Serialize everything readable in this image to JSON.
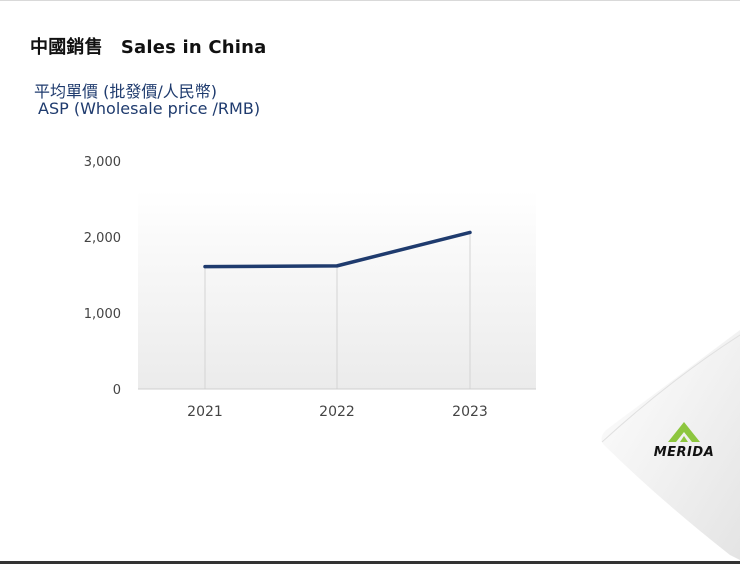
{
  "title": {
    "zh": "中國銷售",
    "en": "Sales in China"
  },
  "subtitle": {
    "zh": "平均單價 (批發價/人民幣)",
    "en": "ASP (Wholesale price /RMB)"
  },
  "chart_data": {
    "type": "line",
    "categories": [
      "2021",
      "2022",
      "2023"
    ],
    "series": [
      {
        "values": [
          1610,
          1620,
          2060
        ]
      }
    ],
    "y_ticks": [
      "3,000",
      "2,000",
      "1,000",
      "0"
    ],
    "y_tick_values": [
      3000,
      2000,
      1000,
      0
    ],
    "ylim": [
      0,
      3000
    ],
    "xlabel": "",
    "ylabel": "",
    "grid": false,
    "line_color": "#1f3b6e"
  },
  "logo": {
    "text": "MERIDA",
    "accent_color": "#8dc63f"
  }
}
